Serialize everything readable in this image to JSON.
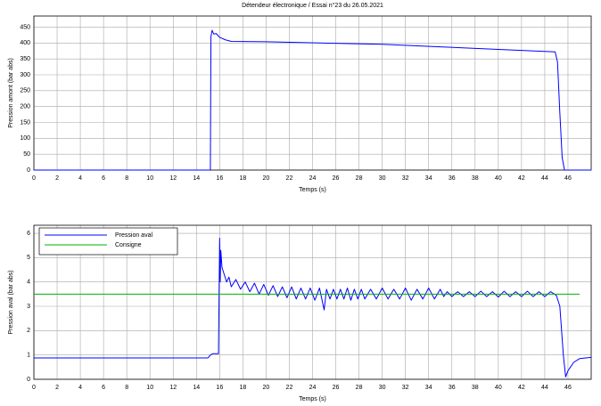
{
  "chart_data": [
    {
      "type": "line",
      "title": "Détendeur électronique / Essai n°23 du 26.05.2021",
      "xlabel": "Temps (s)",
      "ylabel": "Pression amont (bar abs)",
      "xlim": [
        0,
        48
      ],
      "ylim": [
        0,
        485
      ],
      "xticks": [
        0,
        2,
        4,
        6,
        8,
        10,
        12,
        14,
        16,
        18,
        20,
        22,
        24,
        26,
        28,
        30,
        32,
        34,
        36,
        38,
        40,
        42,
        44,
        46
      ],
      "yticks": [
        0,
        50,
        100,
        150,
        200,
        250,
        300,
        350,
        400,
        450
      ],
      "grid": true,
      "series": [
        {
          "color": "#0000ff",
          "x": [
            0,
            15.2,
            15.25,
            15.35,
            15.5,
            15.7,
            16.0,
            16.5,
            17.0,
            20,
            25,
            30,
            35,
            40,
            44.9,
            45.1,
            45.3,
            45.5,
            45.7,
            48
          ],
          "values": [
            0,
            0,
            420,
            440,
            428,
            430,
            418,
            410,
            405,
            404,
            400,
            396,
            388,
            380,
            372,
            340,
            180,
            40,
            0,
            0
          ]
        }
      ]
    },
    {
      "type": "line",
      "xlabel": "Temps (s)",
      "ylabel": "Pression aval (bar abs)",
      "xlim": [
        0,
        48
      ],
      "ylim": [
        0,
        6.33
      ],
      "xticks": [
        0,
        2,
        4,
        6,
        8,
        10,
        12,
        14,
        16,
        18,
        20,
        22,
        24,
        26,
        28,
        30,
        32,
        34,
        36,
        38,
        40,
        42,
        44,
        46
      ],
      "yticks": [
        0,
        1,
        2,
        3,
        4,
        5,
        6
      ],
      "grid": true,
      "legend": "upper left",
      "series": [
        {
          "name": "Pression aval",
          "color": "#0000ff",
          "x": [
            0,
            15,
            15.2,
            15.4,
            15.9,
            16.0,
            16.05,
            16.1,
            16.2,
            16.4,
            16.6,
            16.8,
            17.0,
            17.4,
            17.8,
            18.2,
            18.6,
            19,
            19.4,
            19.8,
            20.2,
            20.6,
            21,
            21.4,
            21.8,
            22.2,
            22.6,
            23,
            23.4,
            23.8,
            24.2,
            24.6,
            25,
            25.2,
            25.5,
            25.8,
            26.1,
            26.4,
            26.7,
            27,
            27.3,
            27.6,
            27.9,
            28.2,
            28.5,
            29,
            29.5,
            30,
            30.5,
            31,
            31.5,
            32,
            32.5,
            33,
            33.5,
            34,
            34.5,
            35,
            35.3,
            35.6,
            36,
            36.5,
            37,
            37.5,
            38,
            38.5,
            39,
            39.5,
            40,
            40.5,
            41,
            41.5,
            42,
            42.5,
            43,
            43.5,
            44,
            44.5,
            45,
            45.3,
            45.6,
            45.8,
            46,
            46.5,
            47,
            48
          ],
          "values": [
            0.88,
            0.88,
            1.0,
            1.05,
            1.05,
            5.8,
            4.0,
            5.3,
            4.6,
            4.3,
            4.0,
            4.2,
            3.8,
            4.1,
            3.7,
            4.0,
            3.6,
            3.95,
            3.5,
            3.9,
            3.45,
            3.85,
            3.4,
            3.8,
            3.35,
            3.8,
            3.3,
            3.75,
            3.3,
            3.75,
            3.25,
            3.75,
            2.85,
            3.7,
            3.3,
            3.7,
            3.3,
            3.7,
            3.3,
            3.75,
            3.25,
            3.7,
            3.3,
            3.7,
            3.3,
            3.7,
            3.3,
            3.75,
            3.3,
            3.7,
            3.3,
            3.75,
            3.25,
            3.7,
            3.3,
            3.75,
            3.3,
            3.7,
            3.4,
            3.6,
            3.4,
            3.6,
            3.4,
            3.6,
            3.4,
            3.62,
            3.4,
            3.6,
            3.38,
            3.62,
            3.4,
            3.6,
            3.4,
            3.62,
            3.4,
            3.6,
            3.4,
            3.6,
            3.45,
            3.0,
            1.0,
            0.1,
            0.35,
            0.7,
            0.85,
            0.9
          ]
        },
        {
          "name": "Consigne",
          "color": "#00b000",
          "x": [
            0,
            47
          ],
          "values": [
            3.5,
            3.5
          ]
        }
      ]
    }
  ]
}
